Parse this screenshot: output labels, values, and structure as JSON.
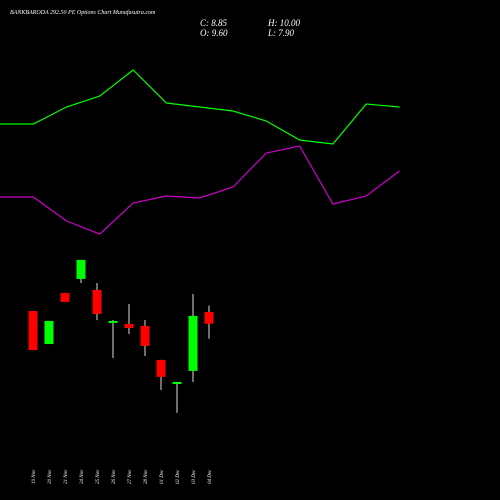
{
  "header": {
    "title": "BANKBARODA 292.50  PE Options  Chart Munafasutra.com",
    "close": "C: 8.85",
    "open": "O: 9.60",
    "high": "H: 10.00",
    "low": "L: 7.90"
  },
  "chart_data": [
    {
      "type": "line",
      "categories": [
        null,
        null,
        null,
        null,
        null,
        null,
        null,
        null,
        null,
        null,
        null,
        null,
        null
      ],
      "ylim": [
        0,
        500
      ],
      "series": [
        {
          "color": "#00ff00",
          "values": [
            376,
            376,
            393,
            404,
            430,
            397,
            393,
            389,
            379,
            360,
            356,
            396,
            393
          ]
        },
        {
          "color": "#cc00cc",
          "values": [
            303,
            303,
            279,
            266,
            297,
            304,
            302,
            313,
            347,
            354,
            296,
            304,
            329
          ]
        }
      ]
    },
    {
      "type": "candlestick",
      "categories": [
        "19 Nov",
        "20 Nov",
        "21 Nov",
        "24 Nov",
        "25 Nov",
        "26 Nov",
        "27 Nov",
        "28 Nov",
        "01 Dec",
        "02 Dec",
        "03 Dec",
        "04 Dec"
      ],
      "open": [
        9.66,
        7.56,
        10.81,
        11.7,
        11.0,
        8.9,
        8.84,
        8.71,
        6.55,
        5.02,
        5.85,
        9.6
      ],
      "high": [
        9.66,
        9.03,
        10.81,
        12.91,
        11.44,
        9.09,
        10.11,
        9.09,
        6.55,
        5.15,
        10.74,
        10.0
      ],
      "low": [
        7.18,
        7.56,
        10.24,
        11.44,
        9.09,
        6.67,
        8.2,
        6.8,
        4.64,
        3.18,
        5.15,
        7.9
      ],
      "close": [
        7.18,
        9.03,
        10.24,
        12.91,
        9.47,
        9.03,
        8.58,
        7.44,
        5.47,
        5.15,
        9.35,
        8.85
      ],
      "ylim": [
        2.73,
        13.54
      ],
      "up_color": "#00ff00",
      "down_color": "#ff0000"
    }
  ]
}
